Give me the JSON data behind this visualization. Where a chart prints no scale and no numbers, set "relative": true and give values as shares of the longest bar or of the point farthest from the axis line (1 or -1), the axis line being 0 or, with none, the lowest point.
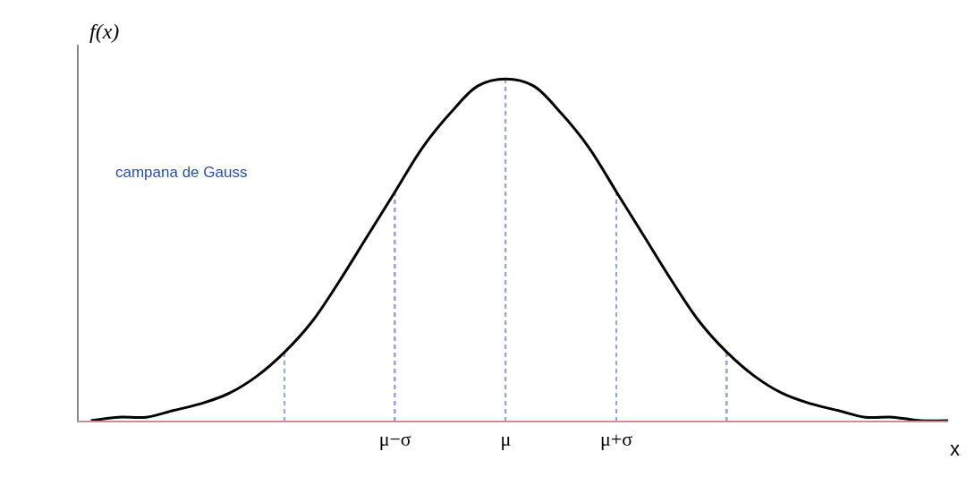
{
  "chart_data": {
    "type": "line",
    "relative": true,
    "xlabel": "x",
    "ylabel": "f(x)",
    "annotations": [
      "campana de Gauss"
    ],
    "categories": [
      null,
      null,
      null,
      null,
      null,
      null,
      null,
      null,
      null,
      null,
      null,
      "μ−σ",
      null,
      null,
      null,
      "μ",
      null,
      null,
      null,
      "μ+σ",
      null,
      null,
      null,
      null,
      null,
      null,
      null,
      null,
      null,
      null,
      null,
      null
    ],
    "marker": "none",
    "series": [
      {
        "color": "#000000",
        "line_style": "solid",
        "values": [
          0.0,
          0.01,
          0.01,
          0.03,
          0.05,
          0.08,
          0.13,
          0.2,
          0.29,
          0.41,
          0.54,
          0.67,
          0.8,
          0.9,
          0.98,
          1,
          0.98,
          0.9,
          0.8,
          0.67,
          0.54,
          0.41,
          0.29,
          0.2,
          0.13,
          0.08,
          0.05,
          0.03,
          0.01,
          0.01,
          0.0,
          0.0
        ]
      },
      {
        "type": "bar",
        "color": "#2a4fa0",
        "line_style": "dashed",
        "values": [
          null,
          null,
          null,
          null,
          null,
          null,
          null,
          0.2,
          null,
          null,
          null,
          0.67,
          null,
          null,
          null,
          1,
          null,
          null,
          null,
          0.67,
          null,
          null,
          null,
          0.2,
          null,
          null,
          null,
          null,
          null,
          null,
          null,
          null
        ]
      }
    ]
  }
}
